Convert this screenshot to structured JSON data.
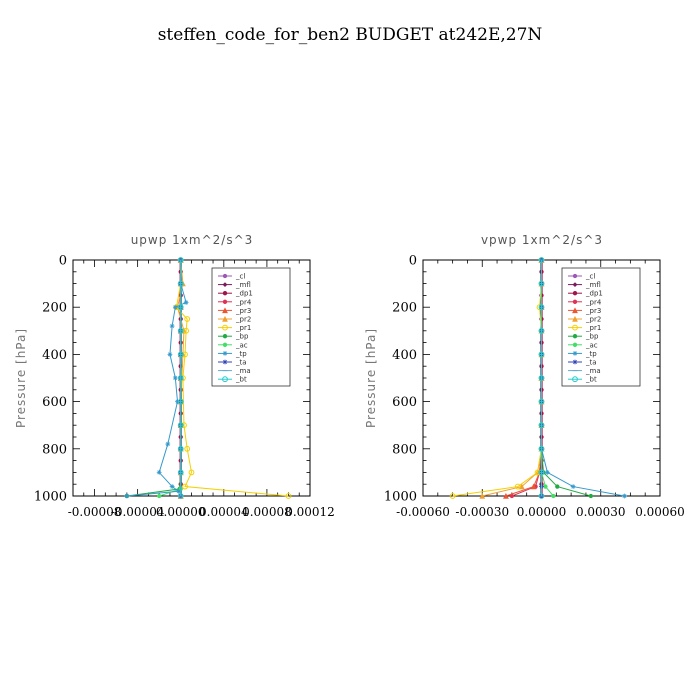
{
  "title": "steffen_code_for_ben2  BUDGET at242E,27N",
  "chart_data": [
    {
      "type": "line",
      "title": "upwp   1xm^2/s^3",
      "ylabel": "Pressure [hPa]",
      "xlabel": "",
      "ylim": [
        0,
        1000
      ],
      "y_inverted": true,
      "xlim": [
        -0.0001,
        0.00012
      ],
      "xticks": [
        -8e-05,
        -4e-05,
        0.0,
        4e-05,
        8e-05,
        0.00012
      ],
      "xtick_labels": [
        "-0.00008",
        "-0.00004",
        "0.00000",
        "0.00004",
        "0.00008",
        "0.00012"
      ],
      "yticks": [
        0,
        200,
        400,
        600,
        800,
        1000
      ],
      "ytick_labels": [
        "0",
        "200",
        "400",
        "600",
        "800",
        "1000"
      ],
      "legend_position": "top-right",
      "series": [
        {
          "name": "_cl",
          "color": "#9b59b6",
          "marker": "dot",
          "x": [
            0,
            0,
            0,
            0,
            0,
            0,
            0,
            0,
            0,
            0,
            0
          ],
          "y": [
            0,
            100,
            200,
            300,
            400,
            500,
            600,
            700,
            800,
            900,
            1000
          ]
        },
        {
          "name": "_mfl",
          "color": "#7a1a5a",
          "marker": "diamond",
          "x": [
            0,
            0,
            0,
            0,
            0,
            0,
            0,
            0,
            0,
            0,
            0
          ],
          "y": [
            0,
            100,
            200,
            300,
            400,
            500,
            600,
            700,
            800,
            900,
            1000
          ]
        },
        {
          "name": "_dp1",
          "color": "#a0144a",
          "marker": "dot",
          "x": [
            0,
            0,
            0,
            0,
            0,
            0,
            0,
            0,
            0,
            0,
            0,
            0,
            0,
            0,
            0,
            0,
            0,
            0,
            0,
            0,
            0
          ],
          "y": [
            0,
            50,
            100,
            150,
            200,
            250,
            300,
            350,
            400,
            450,
            500,
            550,
            600,
            650,
            700,
            750,
            800,
            850,
            900,
            950,
            1000
          ]
        },
        {
          "name": "_pr4",
          "color": "#dd3355",
          "marker": "dot",
          "x": [
            0,
            0,
            0,
            0,
            0,
            0,
            0,
            0,
            0,
            0,
            0
          ],
          "y": [
            0,
            100,
            200,
            300,
            400,
            500,
            600,
            700,
            800,
            900,
            1000
          ]
        },
        {
          "name": "_pr3",
          "color": "#ee5533",
          "marker": "tri",
          "x": [
            0,
            0,
            0,
            0,
            0,
            0,
            0,
            0,
            0,
            0,
            0
          ],
          "y": [
            0,
            100,
            200,
            300,
            400,
            500,
            600,
            700,
            800,
            900,
            1000
          ]
        },
        {
          "name": "_pr2",
          "color": "#f0a030",
          "marker": "tri",
          "x": [
            0,
            2e-06,
            -3e-06,
            3e-06,
            2e-06,
            1e-06,
            0,
            0,
            0,
            0,
            0
          ],
          "y": [
            0,
            100,
            200,
            300,
            400,
            500,
            600,
            700,
            800,
            900,
            1000
          ]
        },
        {
          "name": "_pr1",
          "color": "#f5d000",
          "marker": "circle",
          "x": [
            0,
            0,
            -4e-06,
            6e-06,
            5e-06,
            4e-06,
            2e-06,
            3e-06,
            6e-06,
            1e-05,
            4e-06,
            0.0001
          ],
          "y": [
            0,
            100,
            200,
            250,
            300,
            400,
            500,
            700,
            800,
            900,
            960,
            1000
          ]
        },
        {
          "name": "_bp",
          "color": "#22aa44",
          "marker": "dot",
          "x": [
            0,
            0,
            0,
            0,
            0,
            0,
            0,
            0,
            0,
            0,
            -1e-06,
            -5e-05
          ],
          "y": [
            0,
            100,
            200,
            300,
            400,
            500,
            600,
            700,
            800,
            900,
            970,
            1000
          ]
        },
        {
          "name": "_ac",
          "color": "#44dd66",
          "marker": "dot",
          "x": [
            0,
            0,
            0,
            0,
            0,
            0,
            0,
            0,
            0,
            0,
            0,
            -2e-05
          ],
          "y": [
            0,
            100,
            200,
            300,
            400,
            500,
            600,
            700,
            800,
            900,
            970,
            1000
          ]
        },
        {
          "name": "_tp",
          "color": "#3399cc",
          "marker": "star",
          "x": [
            0,
            0,
            5e-06,
            -5e-06,
            -8e-06,
            -1e-05,
            -5e-06,
            -3e-06,
            -1.2e-05,
            -2e-05,
            -8e-06,
            -2e-06,
            -5e-05
          ],
          "y": [
            0,
            100,
            180,
            200,
            280,
            400,
            500,
            600,
            780,
            900,
            960,
            980,
            1000
          ]
        },
        {
          "name": "_ta",
          "color": "#3344bb",
          "marker": "star",
          "x": [
            0,
            0,
            0,
            0,
            0,
            0,
            0,
            0,
            0,
            0,
            0
          ],
          "y": [
            0,
            100,
            200,
            300,
            400,
            500,
            600,
            700,
            800,
            900,
            1000
          ]
        },
        {
          "name": "_ma",
          "color": "#66aacc",
          "marker": "dash",
          "x": [
            0,
            0,
            0,
            0,
            0,
            0,
            0,
            0,
            0,
            0,
            0
          ],
          "y": [
            0,
            100,
            200,
            300,
            400,
            500,
            600,
            700,
            800,
            900,
            1000
          ]
        },
        {
          "name": "_bt",
          "color": "#22cccc",
          "marker": "circle",
          "x": [
            0,
            0,
            0,
            0,
            0,
            0,
            0,
            0,
            0,
            0,
            0
          ],
          "y": [
            0,
            100,
            200,
            300,
            400,
            500,
            600,
            700,
            800,
            900,
            1000
          ]
        }
      ]
    },
    {
      "type": "line",
      "title": "vpwp   1xm^2/s^3",
      "ylabel": "Pressure [hPa]",
      "xlabel": "",
      "ylim": [
        0,
        1000
      ],
      "y_inverted": true,
      "xlim": [
        -0.0006,
        0.0006
      ],
      "xticks": [
        -0.0006,
        -0.0003,
        0.0,
        0.0003,
        0.0006
      ],
      "xtick_labels": [
        "-0.00060",
        "-0.00030",
        "0.00000",
        "0.00030",
        "0.00060"
      ],
      "yticks": [
        0,
        200,
        400,
        600,
        800,
        1000
      ],
      "ytick_labels": [
        "0",
        "200",
        "400",
        "600",
        "800",
        "1000"
      ],
      "legend_position": "top-right",
      "series": [
        {
          "name": "_cl",
          "color": "#9b59b6",
          "marker": "dot",
          "x": [
            0,
            0,
            0,
            0,
            0,
            0,
            0,
            0,
            0,
            0,
            0
          ],
          "y": [
            0,
            100,
            200,
            300,
            400,
            500,
            600,
            700,
            800,
            900,
            1000
          ]
        },
        {
          "name": "_mfl",
          "color": "#7a1a5a",
          "marker": "diamond",
          "x": [
            0,
            0,
            0,
            0,
            0,
            0,
            0,
            0,
            0,
            0,
            0
          ],
          "y": [
            0,
            100,
            200,
            300,
            400,
            500,
            600,
            700,
            800,
            900,
            1000
          ]
        },
        {
          "name": "_dp1",
          "color": "#a0144a",
          "marker": "dot",
          "x": [
            0,
            0,
            0,
            0,
            0,
            0,
            0,
            0,
            0,
            0,
            0,
            0,
            0,
            0,
            0,
            0,
            0,
            0,
            0,
            0,
            0
          ],
          "y": [
            0,
            50,
            100,
            150,
            200,
            250,
            300,
            350,
            400,
            450,
            500,
            550,
            600,
            650,
            700,
            750,
            800,
            850,
            900,
            950,
            1000
          ]
        },
        {
          "name": "_pr4",
          "color": "#dd3355",
          "marker": "dot",
          "x": [
            0,
            0,
            0,
            0,
            0,
            0,
            0,
            0,
            0,
            -1e-05,
            -3e-05,
            -0.00015
          ],
          "y": [
            0,
            100,
            200,
            300,
            400,
            500,
            600,
            700,
            800,
            900,
            960,
            1000
          ]
        },
        {
          "name": "_pr3",
          "color": "#ee5533",
          "marker": "tri",
          "x": [
            0,
            0,
            0,
            0,
            0,
            0,
            0,
            0,
            0,
            -1e-05,
            -4e-05,
            -0.00018
          ],
          "y": [
            0,
            100,
            200,
            300,
            400,
            500,
            600,
            700,
            800,
            900,
            960,
            1000
          ]
        },
        {
          "name": "_pr2",
          "color": "#f0a030",
          "marker": "tri",
          "x": [
            0,
            0,
            0,
            0,
            0,
            0,
            0,
            0,
            0,
            -2e-05,
            -0.0001,
            -0.0003
          ],
          "y": [
            0,
            100,
            200,
            300,
            400,
            500,
            600,
            700,
            800,
            900,
            960,
            1000
          ]
        },
        {
          "name": "_pr1",
          "color": "#f5d000",
          "marker": "circle",
          "x": [
            0,
            0,
            -1e-05,
            0,
            0,
            0,
            0,
            0,
            0,
            -2e-05,
            -0.00012,
            -0.00045
          ],
          "y": [
            0,
            100,
            200,
            300,
            400,
            500,
            600,
            700,
            800,
            900,
            960,
            1000
          ]
        },
        {
          "name": "_bp",
          "color": "#22aa44",
          "marker": "dot",
          "x": [
            0,
            0,
            0,
            0,
            0,
            0,
            0,
            0,
            0,
            1e-05,
            8e-05,
            0.00025
          ],
          "y": [
            0,
            100,
            200,
            300,
            400,
            500,
            600,
            700,
            800,
            900,
            960,
            1000
          ]
        },
        {
          "name": "_ac",
          "color": "#44dd66",
          "marker": "dot",
          "x": [
            0,
            0,
            0,
            0,
            0,
            0,
            0,
            0,
            0,
            0,
            2e-05,
            6e-05
          ],
          "y": [
            0,
            100,
            200,
            300,
            400,
            500,
            600,
            700,
            800,
            900,
            960,
            1000
          ]
        },
        {
          "name": "_tp",
          "color": "#3399cc",
          "marker": "star",
          "x": [
            0,
            0,
            0,
            0,
            0,
            0,
            0,
            0,
            0,
            3e-05,
            0.00016,
            0.00042
          ],
          "y": [
            0,
            100,
            200,
            300,
            400,
            500,
            600,
            700,
            800,
            900,
            960,
            1000
          ]
        },
        {
          "name": "_ta",
          "color": "#3344bb",
          "marker": "star",
          "x": [
            0,
            0,
            0,
            0,
            0,
            0,
            0,
            0,
            0,
            0,
            0,
            0
          ],
          "y": [
            0,
            100,
            200,
            300,
            400,
            500,
            600,
            700,
            800,
            900,
            960,
            1000
          ]
        },
        {
          "name": "_ma",
          "color": "#66aacc",
          "marker": "dash",
          "x": [
            0,
            0,
            0,
            0,
            0,
            0,
            0,
            0,
            0,
            0,
            0
          ],
          "y": [
            0,
            100,
            200,
            300,
            400,
            500,
            600,
            700,
            800,
            900,
            1000
          ]
        },
        {
          "name": "_bt",
          "color": "#22cccc",
          "marker": "circle",
          "x": [
            0,
            0,
            0,
            0,
            0,
            0,
            0,
            0,
            0,
            0,
            0
          ],
          "y": [
            0,
            100,
            200,
            300,
            400,
            500,
            600,
            700,
            800,
            900,
            1000
          ]
        }
      ]
    }
  ]
}
